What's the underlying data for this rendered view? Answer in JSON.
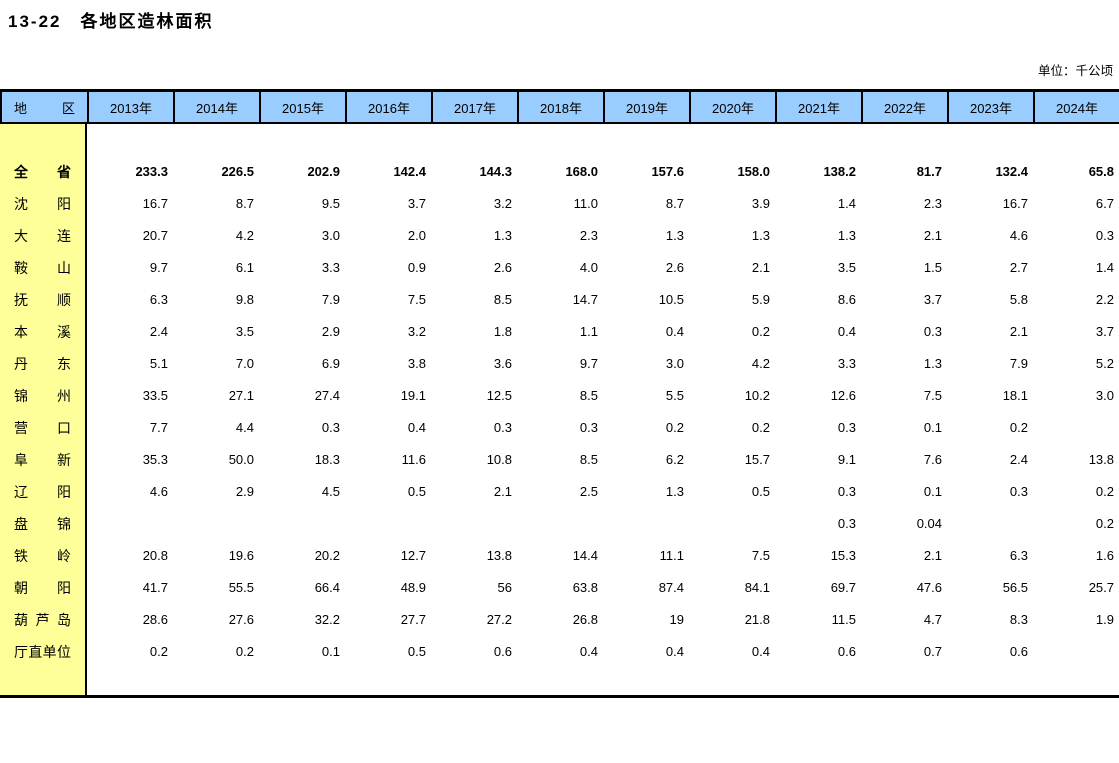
{
  "page": {
    "title": "13-22　各地区造林面积",
    "unit_label": "单位：千公顷"
  },
  "table": {
    "colors": {
      "header_bg": "#99CCFF",
      "region_bg": "#FFFF99",
      "border": "#000000"
    },
    "region_header": "地区",
    "year_headers": [
      "2013年",
      "2014年",
      "2015年",
      "2016年",
      "2017年",
      "2018年",
      "2019年",
      "2020年",
      "2021年",
      "2022年",
      "2023年",
      "2024年"
    ],
    "rows": [
      {
        "region": "全省",
        "emphasis": true,
        "values": [
          "233.3",
          "226.5",
          "202.9",
          "142.4",
          "144.3",
          "168.0",
          "157.6",
          "158.0",
          "138.2",
          "81.7",
          "132.4",
          "65.8"
        ]
      },
      {
        "region": "沈阳",
        "emphasis": false,
        "values": [
          "16.7",
          "8.7",
          "9.5",
          "3.7",
          "3.2",
          "11.0",
          "8.7",
          "3.9",
          "1.4",
          "2.3",
          "16.7",
          "6.7"
        ]
      },
      {
        "region": "大连",
        "emphasis": false,
        "values": [
          "20.7",
          "4.2",
          "3.0",
          "2.0",
          "1.3",
          "2.3",
          "1.3",
          "1.3",
          "1.3",
          "2.1",
          "4.6",
          "0.3"
        ]
      },
      {
        "region": "鞍山",
        "emphasis": false,
        "values": [
          "9.7",
          "6.1",
          "3.3",
          "0.9",
          "2.6",
          "4.0",
          "2.6",
          "2.1",
          "3.5",
          "1.5",
          "2.7",
          "1.4"
        ]
      },
      {
        "region": "抚顺",
        "emphasis": false,
        "values": [
          "6.3",
          "9.8",
          "7.9",
          "7.5",
          "8.5",
          "14.7",
          "10.5",
          "5.9",
          "8.6",
          "3.7",
          "5.8",
          "2.2"
        ]
      },
      {
        "region": "本溪",
        "emphasis": false,
        "values": [
          "2.4",
          "3.5",
          "2.9",
          "3.2",
          "1.8",
          "1.1",
          "0.4",
          "0.2",
          "0.4",
          "0.3",
          "2.1",
          "3.7"
        ]
      },
      {
        "region": "丹东",
        "emphasis": false,
        "values": [
          "5.1",
          "7.0",
          "6.9",
          "3.8",
          "3.6",
          "9.7",
          "3.0",
          "4.2",
          "3.3",
          "1.3",
          "7.9",
          "5.2"
        ]
      },
      {
        "region": "锦州",
        "emphasis": false,
        "values": [
          "33.5",
          "27.1",
          "27.4",
          "19.1",
          "12.5",
          "8.5",
          "5.5",
          "10.2",
          "12.6",
          "7.5",
          "18.1",
          "3.0"
        ]
      },
      {
        "region": "营口",
        "emphasis": false,
        "values": [
          "7.7",
          "4.4",
          "0.3",
          "0.4",
          "0.3",
          "0.3",
          "0.2",
          "0.2",
          "0.3",
          "0.1",
          "0.2",
          ""
        ]
      },
      {
        "region": "阜新",
        "emphasis": false,
        "values": [
          "35.3",
          "50.0",
          "18.3",
          "11.6",
          "10.8",
          "8.5",
          "6.2",
          "15.7",
          "9.1",
          "7.6",
          "2.4",
          "13.8"
        ]
      },
      {
        "region": "辽阳",
        "emphasis": false,
        "values": [
          "4.6",
          "2.9",
          "4.5",
          "0.5",
          "2.1",
          "2.5",
          "1.3",
          "0.5",
          "0.3",
          "0.1",
          "0.3",
          "0.2"
        ]
      },
      {
        "region": "盘锦",
        "emphasis": false,
        "values": [
          "",
          "",
          "",
          "",
          "",
          "",
          "",
          "",
          "0.3",
          "0.04",
          "",
          "0.2"
        ]
      },
      {
        "region": "铁岭",
        "emphasis": false,
        "values": [
          "20.8",
          "19.6",
          "20.2",
          "12.7",
          "13.8",
          "14.4",
          "11.1",
          "7.5",
          "15.3",
          "2.1",
          "6.3",
          "1.6"
        ]
      },
      {
        "region": "朝阳",
        "emphasis": false,
        "values": [
          "41.7",
          "55.5",
          "66.4",
          "48.9",
          "56",
          "63.8",
          "87.4",
          "84.1",
          "69.7",
          "47.6",
          "56.5",
          "25.7"
        ]
      },
      {
        "region": "葫芦岛",
        "emphasis": false,
        "values": [
          "28.6",
          "27.6",
          "32.2",
          "27.7",
          "27.2",
          "26.8",
          "19",
          "21.8",
          "11.5",
          "4.7",
          "8.3",
          "1.9"
        ]
      },
      {
        "region": "厅直单位",
        "emphasis": false,
        "values": [
          "0.2",
          "0.2",
          "0.1",
          "0.5",
          "0.6",
          "0.4",
          "0.4",
          "0.4",
          "0.6",
          "0.7",
          "0.6",
          ""
        ]
      }
    ]
  }
}
